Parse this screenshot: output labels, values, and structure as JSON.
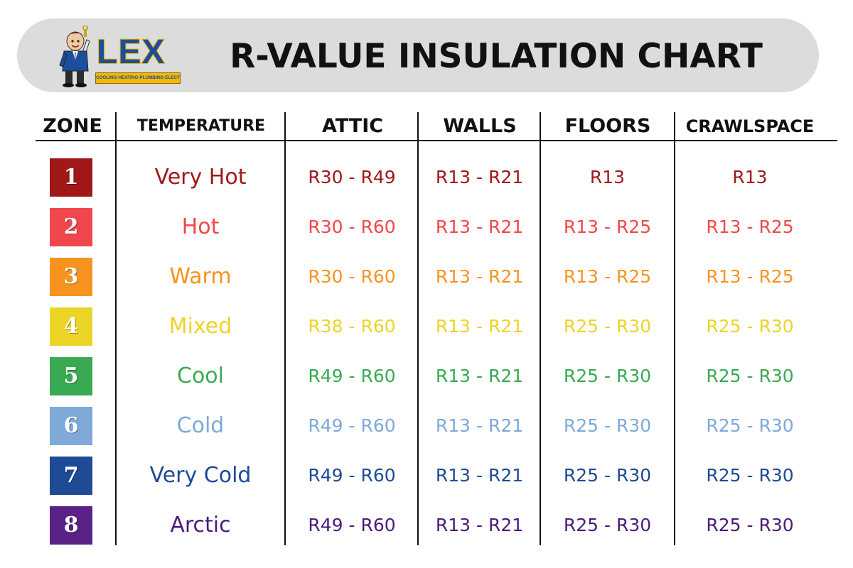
{
  "header": {
    "logo": {
      "brand": "LEX",
      "tagline": "COOLING·HEATING·PLUMBING·ELECTRIC",
      "mascot_icon": "mascot-icon",
      "colors": {
        "brand": "#1b4f9b",
        "accent": "#f2b705"
      }
    },
    "title": "R-VALUE INSULATION CHART"
  },
  "table": {
    "columns": [
      "ZONE",
      "TEMPERATURE",
      "ATTIC",
      "WALLS",
      "FLOORS",
      "CRAWLSPACE"
    ],
    "rows": [
      {
        "zone": "1",
        "temperature": "Very Hot",
        "attic": "R30 - R49",
        "walls": "R13 - R21",
        "floors": "R13",
        "crawlspace": "R13",
        "color": "#a01818",
        "box_color": "#a01818"
      },
      {
        "zone": "2",
        "temperature": "Hot",
        "attic": "R30 - R60",
        "walls": "R13 - R21",
        "floors": "R13 - R25",
        "crawlspace": "R13 - R25",
        "color": "#f0474c",
        "box_color": "#f0474c"
      },
      {
        "zone": "3",
        "temperature": "Warm",
        "attic": "R30 - R60",
        "walls": "R13 - R21",
        "floors": "R13 - R25",
        "crawlspace": "R13 - R25",
        "color": "#f7931e",
        "box_color": "#f7931e"
      },
      {
        "zone": "4",
        "temperature": "Mixed",
        "attic": "R38 - R60",
        "walls": "R13 - R21",
        "floors": "R25 - R30",
        "crawlspace": "R25 - R30",
        "color": "#ecd526",
        "box_color": "#ecd526"
      },
      {
        "zone": "5",
        "temperature": "Cool",
        "attic": "R49 - R60",
        "walls": "R13 - R21",
        "floors": "R25 - R30",
        "crawlspace": "R25 - R30",
        "color": "#3aaa52",
        "box_color": "#3aaa52"
      },
      {
        "zone": "6",
        "temperature": "Cold",
        "attic": "R49 - R60",
        "walls": "R13 - R21",
        "floors": "R25 - R30",
        "crawlspace": "R25 - R30",
        "color": "#7ea9d9",
        "box_color": "#7ea9d9"
      },
      {
        "zone": "7",
        "temperature": "Very Cold",
        "attic": "R49 - R60",
        "walls": "R13 - R21",
        "floors": "R25 - R30",
        "crawlspace": "R25 - R30",
        "color": "#1f4a96",
        "box_color": "#1f4a96"
      },
      {
        "zone": "8",
        "temperature": "Arctic",
        "attic": "R49 - R60",
        "walls": "R13 - R21",
        "floors": "R25 - R30",
        "crawlspace": "R25 - R30",
        "color": "#4b1c7a",
        "box_color": "#5a2186"
      }
    ]
  }
}
